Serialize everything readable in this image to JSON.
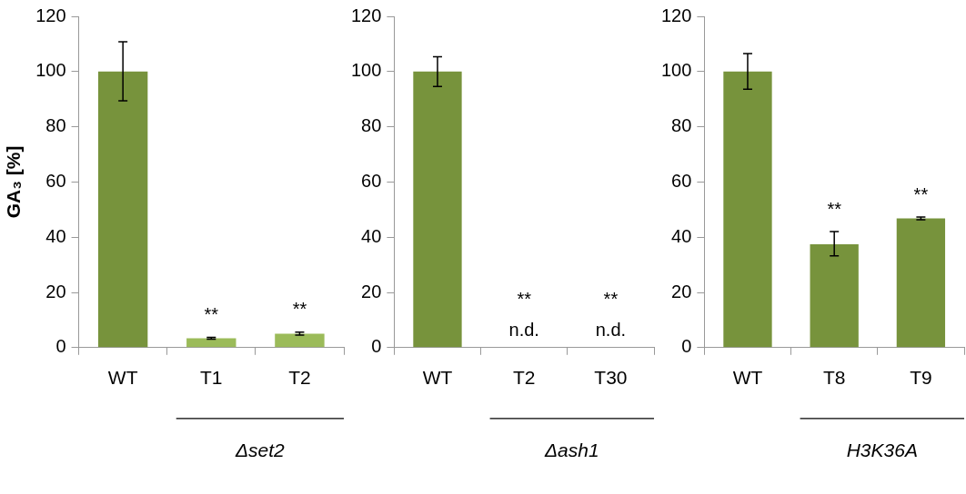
{
  "chart_data": [
    {
      "type": "bar",
      "ylabel": "GA₃ [%]",
      "categories": [
        "WT",
        "T1",
        "T2"
      ],
      "values": [
        100,
        3.4,
        5.0
      ],
      "colors": [
        "#77933c",
        "#9bbb59",
        "#9bbb59"
      ],
      "errors": [
        [
          89.4,
          110.8
        ],
        [
          3.1,
          3.7
        ],
        [
          4.5,
          5.6
        ]
      ],
      "ylim": [
        0,
        120
      ],
      "yticks": [
        0,
        20,
        40,
        60,
        80,
        100,
        120
      ],
      "legend": false,
      "value_labels": [
        null,
        "**",
        "**"
      ],
      "annotations": [
        "Δset2"
      ]
    },
    {
      "type": "bar",
      "categories": [
        "WT",
        "T2",
        "T30"
      ],
      "values": [
        100,
        null,
        null
      ],
      "colors": [
        "#77933c",
        "#77933c",
        "#77933c"
      ],
      "errors": [
        [
          94.6,
          105.4
        ],
        null,
        null
      ],
      "ylim": [
        0,
        120
      ],
      "yticks": [
        0,
        20,
        40,
        60,
        80,
        100,
        120
      ],
      "legend": false,
      "value_labels": [
        null,
        "n.d.",
        "n.d."
      ],
      "annotations": [
        "**",
        "**",
        "Δash1"
      ]
    },
    {
      "type": "bar",
      "categories": [
        "WT",
        "T8",
        "T9"
      ],
      "values": [
        100,
        37.4,
        46.8
      ],
      "colors": [
        "#77933c",
        "#77933c",
        "#77933c"
      ],
      "errors": [
        [
          93.6,
          106.5
        ],
        [
          33.2,
          42.0
        ],
        [
          46.3,
          47.3
        ]
      ],
      "ylim": [
        0,
        120
      ],
      "yticks": [
        0,
        20,
        40,
        60,
        80,
        100,
        120
      ],
      "legend": false,
      "value_labels": [
        null,
        "**",
        "**"
      ],
      "annotations": [
        "H3K36A"
      ]
    }
  ]
}
